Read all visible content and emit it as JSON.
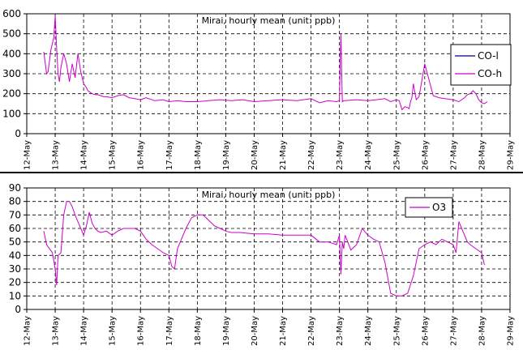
{
  "chart_data": [
    {
      "type": "line",
      "title": "Mirai, hourly mean (unit: ppb)",
      "xlabel": "",
      "ylabel": "",
      "xlim": [
        "12-May",
        "29-May"
      ],
      "ylim": [
        0,
        600
      ],
      "yticks": [
        0,
        100,
        200,
        300,
        400,
        500,
        600
      ],
      "xticks": [
        "12-May",
        "13-May",
        "14-May",
        "15-May",
        "16-May",
        "17-May",
        "18-May",
        "19-May",
        "20-May",
        "21-May",
        "22-May",
        "23-May",
        "24-May",
        "25-May",
        "26-May",
        "27-May",
        "28-May",
        "29-May"
      ],
      "grid": true,
      "legend_position": "right",
      "colors": {
        "CO-l": "#000080",
        "CO-h": "#cc00cc"
      },
      "series": [
        {
          "name": "CO-l",
          "values": []
        },
        {
          "name": "CO-h",
          "day_offsets": [
            0.6,
            0.7,
            0.75,
            0.85,
            0.95,
            1.0,
            1.05,
            1.1,
            1.15,
            1.2,
            1.3,
            1.4,
            1.5,
            1.6,
            1.7,
            1.8,
            1.9,
            2.0,
            2.05,
            2.1,
            2.15,
            2.2,
            2.25,
            2.3,
            2.4,
            2.5,
            2.6,
            2.7,
            2.8,
            3.0,
            3.2,
            3.4,
            3.6,
            3.8,
            4.0,
            4.2,
            4.5,
            4.8,
            5.0,
            5.3,
            5.6,
            6.0,
            6.4,
            6.8,
            7.2,
            7.6,
            8.0,
            8.5,
            9.0,
            9.5,
            10.0,
            10.3,
            10.6,
            10.9,
            11.0,
            11.05,
            11.1,
            11.15,
            11.2,
            11.6,
            12.0,
            12.3,
            12.6,
            12.8,
            13.0,
            13.1,
            13.2,
            13.3,
            13.4,
            13.45,
            13.5,
            13.55,
            13.6,
            13.7,
            13.8,
            14.0,
            14.3,
            14.5,
            14.7,
            15.0,
            15.2,
            15.4,
            15.5,
            15.6,
            15.7,
            15.8,
            15.9,
            16.0,
            16.1,
            16.2
          ],
          "values": [
            410,
            300,
            310,
            420,
            480,
            590,
            430,
            300,
            260,
            330,
            400,
            350,
            260,
            350,
            280,
            400,
            310,
            250,
            240,
            230,
            215,
            210,
            205,
            200,
            195,
            195,
            190,
            185,
            185,
            180,
            190,
            195,
            180,
            175,
            170,
            180,
            165,
            170,
            160,
            165,
            160,
            160,
            165,
            170,
            165,
            170,
            160,
            165,
            170,
            165,
            175,
            155,
            165,
            160,
            165,
            500,
            160,
            165,
            165,
            170,
            165,
            170,
            175,
            160,
            170,
            165,
            120,
            135,
            130,
            125,
            160,
            180,
            250,
            170,
            185,
            350,
            190,
            180,
            175,
            170,
            160,
            180,
            195,
            200,
            215,
            200,
            170,
            155,
            150,
            160
          ]
        }
      ]
    },
    {
      "type": "line",
      "title": "Mirai, hourly mean (unit: ppb)",
      "xlabel": "",
      "ylabel": "",
      "xlim": [
        "12-May",
        "29-May"
      ],
      "ylim": [
        0,
        90
      ],
      "yticks": [
        0,
        10,
        20,
        30,
        40,
        50,
        60,
        70,
        80,
        90
      ],
      "xticks": [
        "12-May",
        "13-May",
        "14-May",
        "15-May",
        "16-May",
        "17-May",
        "18-May",
        "19-May",
        "20-May",
        "21-May",
        "22-May",
        "23-May",
        "24-May",
        "25-May",
        "26-May",
        "27-May",
        "28-May",
        "29-May"
      ],
      "grid": true,
      "legend_position": "top-right",
      "colors": {
        "O3": "#cc00cc"
      },
      "series": [
        {
          "name": "O3",
          "day_offsets": [
            0.6,
            0.7,
            0.8,
            0.9,
            1.0,
            1.05,
            1.1,
            1.2,
            1.3,
            1.4,
            1.5,
            1.6,
            1.7,
            1.8,
            1.9,
            2.0,
            2.1,
            2.2,
            2.3,
            2.4,
            2.5,
            2.6,
            2.8,
            3.0,
            3.2,
            3.4,
            3.6,
            3.8,
            4.0,
            4.2,
            4.4,
            4.6,
            4.8,
            5.0,
            5.1,
            5.2,
            5.3,
            5.4,
            5.5,
            5.6,
            5.8,
            6.0,
            6.2,
            6.4,
            6.6,
            6.8,
            7.0,
            7.2,
            7.5,
            8.0,
            8.5,
            9.0,
            9.5,
            10.0,
            10.3,
            10.6,
            10.9,
            11.0,
            11.05,
            11.1,
            11.15,
            11.2,
            11.4,
            11.6,
            11.8,
            12.0,
            12.2,
            12.4,
            12.6,
            12.8,
            13.0,
            13.2,
            13.4,
            13.6,
            13.8,
            14.0,
            14.2,
            14.4,
            14.6,
            14.8,
            15.0,
            15.1,
            15.2,
            15.3,
            15.4,
            15.5,
            15.6,
            15.8,
            16.0,
            16.1
          ],
          "values": [
            58,
            48,
            45,
            42,
            30,
            18,
            40,
            42,
            70,
            80,
            80,
            76,
            70,
            65,
            60,
            55,
            62,
            72,
            64,
            60,
            58,
            57,
            58,
            55,
            58,
            60,
            60,
            60,
            58,
            52,
            48,
            45,
            42,
            40,
            32,
            30,
            45,
            50,
            55,
            60,
            68,
            70,
            70,
            66,
            62,
            60,
            58,
            57,
            57,
            56,
            56,
            55,
            55,
            55,
            50,
            50,
            48,
            55,
            26,
            50,
            45,
            55,
            44,
            48,
            60,
            55,
            52,
            50,
            35,
            12,
            10,
            10,
            12,
            25,
            45,
            48,
            50,
            48,
            52,
            50,
            48,
            42,
            65,
            60,
            55,
            50,
            48,
            45,
            42,
            33
          ]
        }
      ]
    }
  ]
}
